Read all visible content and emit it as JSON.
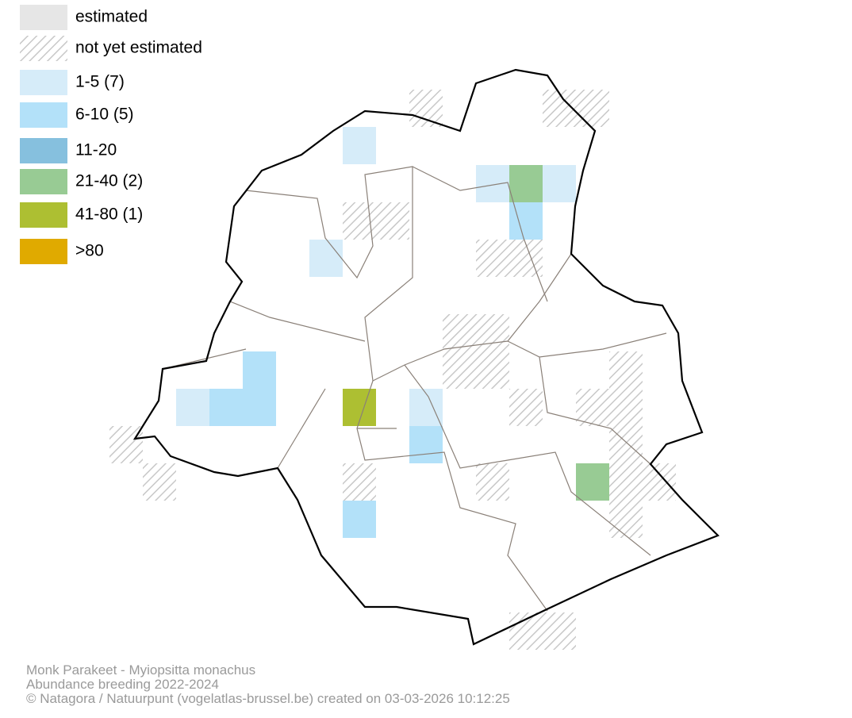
{
  "legend": {
    "items": [
      {
        "label": "estimated",
        "color": "#e6e6e6"
      },
      {
        "label": "not yet estimated",
        "color": "hatch"
      },
      {
        "label": "1-5 (7)",
        "color": "#d6ecf9"
      },
      {
        "label": "6-10 (5)",
        "color": "#b3e1f9"
      },
      {
        "label": "11-20",
        "color": "#86c0de"
      },
      {
        "label": "21-40 (2)",
        "color": "#98cb94"
      },
      {
        "label": "41-80 (1)",
        "color": "#adbf32"
      },
      {
        "label": ">80",
        "color": "#e0aa00"
      }
    ]
  },
  "footer": {
    "lines": [
      "Monk Parakeet - Myiopsitta monachus",
      "Abundance breeding 2022-2024",
      "© Natagora / Natuurpunt (vogelatlas-brussel.be) created on 03-03-2026 10:12:25"
    ]
  }
}
